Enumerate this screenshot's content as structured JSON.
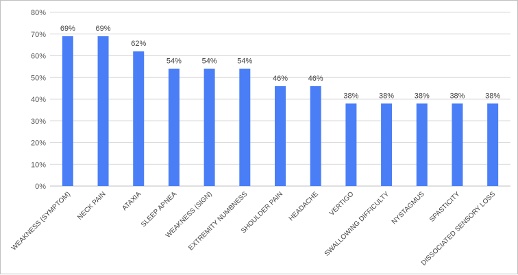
{
  "chart_data": {
    "type": "bar",
    "categories": [
      "WEAKNESS (SYMPTOM)",
      "NECK PAIN",
      "ATAXIA",
      "SLEEP APNEA",
      "WEAKNESS (SIGN)",
      "EXTREMITY NUMBNESS",
      "SHOULDER PAIN",
      "HEADACHE",
      "VERTIGO",
      "SWALLOWING DIFFICULTY",
      "NYSTAGMUS",
      "SPASTICITY",
      "DISSOCIATED SENSORY LOSS"
    ],
    "values": [
      69,
      69,
      62,
      54,
      54,
      54,
      46,
      46,
      38,
      38,
      38,
      38,
      38
    ],
    "value_labels": [
      "69%",
      "69%",
      "62%",
      "54%",
      "54%",
      "54%",
      "46%",
      "46%",
      "38%",
      "38%",
      "38%",
      "38%",
      "38%"
    ],
    "yticks": [
      "0%",
      "10%",
      "20%",
      "30%",
      "40%",
      "50%",
      "60%",
      "70%",
      "80%"
    ],
    "ylim": [
      0,
      80
    ],
    "grid": true,
    "bar_color": "#4a7ef7",
    "title": "",
    "xlabel": "",
    "ylabel": ""
  }
}
